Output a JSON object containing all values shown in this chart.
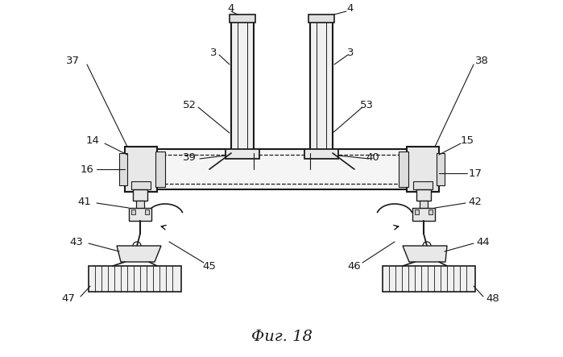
{
  "fig_label": "Фиг. 18",
  "bg_color": "#ffffff",
  "line_color": "#1a1a1a",
  "figsize": [
    6.99,
    4.43
  ],
  "dpi": 100
}
